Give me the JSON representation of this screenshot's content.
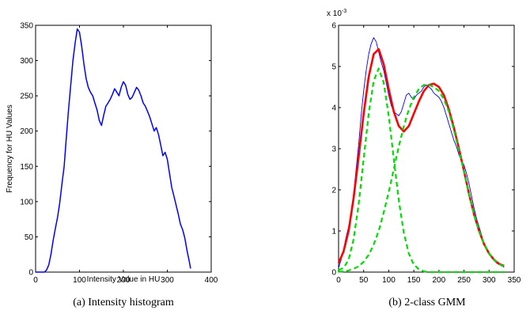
{
  "chart_data": [
    {
      "type": "line",
      "caption": "(a) Intensity histogram",
      "xlabel": "Intensity Value in HU",
      "ylabel": "Frequency for HU Values",
      "xlim": [
        0,
        400
      ],
      "ylim": [
        0,
        350
      ],
      "xticks": [
        "0",
        "100",
        "200",
        "300",
        "400"
      ],
      "yticks": [
        "0",
        "50",
        "100",
        "150",
        "200",
        "250",
        "300",
        "350"
      ],
      "grid": false,
      "series": [
        {
          "color": "#0000ff",
          "x": [
            0,
            20,
            25,
            30,
            35,
            40,
            45,
            50,
            55,
            60,
            65,
            70,
            75,
            80,
            85,
            90,
            95,
            100,
            105,
            110,
            115,
            120,
            125,
            130,
            135,
            140,
            145,
            150,
            155,
            160,
            165,
            170,
            175,
            180,
            185,
            190,
            195,
            200,
            205,
            210,
            215,
            220,
            225,
            230,
            235,
            240,
            245,
            250,
            255,
            260,
            265,
            270,
            275,
            280,
            285,
            290,
            295,
            300,
            305,
            310,
            315,
            320,
            325,
            330,
            335,
            340,
            345,
            350,
            353
          ],
          "y": [
            0,
            0,
            3,
            10,
            25,
            45,
            62,
            78,
            98,
            125,
            150,
            190,
            230,
            265,
            300,
            325,
            345,
            340,
            320,
            295,
            275,
            262,
            255,
            250,
            240,
            230,
            215,
            208,
            222,
            235,
            240,
            245,
            252,
            260,
            255,
            250,
            262,
            270,
            265,
            252,
            245,
            248,
            255,
            262,
            258,
            250,
            240,
            235,
            228,
            220,
            210,
            200,
            205,
            195,
            180,
            165,
            170,
            160,
            140,
            120,
            108,
            95,
            82,
            68,
            60,
            48,
            30,
            15,
            5
          ]
        }
      ]
    },
    {
      "type": "line",
      "caption": "(b) 2-class GMM",
      "xlabel": "",
      "ylabel": "",
      "xlim": [
        0,
        350
      ],
      "ylim": [
        0,
        6
      ],
      "yscale_label": "x 10-3",
      "yscale_base": "x 10",
      "yscale_exponent": "-3",
      "xticks": [
        "0",
        "50",
        "100",
        "150",
        "200",
        "250",
        "300",
        "350"
      ],
      "yticks": [
        "0",
        "1",
        "2",
        "3",
        "4",
        "5",
        "6"
      ],
      "grid": false,
      "series": [
        {
          "color": "#0000ff",
          "style": "solid-thin",
          "x": [
            0,
            5,
            10,
            15,
            20,
            25,
            30,
            35,
            40,
            45,
            50,
            55,
            60,
            65,
            70,
            75,
            80,
            85,
            90,
            95,
            100,
            105,
            110,
            115,
            120,
            125,
            130,
            135,
            140,
            145,
            150,
            155,
            160,
            165,
            170,
            175,
            180,
            185,
            190,
            195,
            200,
            205,
            210,
            215,
            220,
            225,
            230,
            235,
            240,
            245,
            250,
            255,
            260,
            265,
            270,
            275,
            280,
            285,
            290,
            295,
            300,
            305,
            310,
            315,
            320,
            325,
            330
          ],
          "y": [
            0.1,
            0.3,
            0.55,
            0.85,
            1.1,
            1.45,
            1.9,
            2.5,
            3.1,
            3.8,
            4.4,
            4.9,
            5.3,
            5.55,
            5.7,
            5.6,
            5.35,
            5.1,
            4.9,
            4.6,
            4.3,
            4.05,
            3.9,
            3.85,
            3.8,
            3.9,
            4.1,
            4.3,
            4.35,
            4.25,
            4.2,
            4.3,
            4.35,
            4.4,
            4.5,
            4.55,
            4.5,
            4.45,
            4.35,
            4.3,
            4.25,
            4.15,
            4.0,
            3.8,
            3.6,
            3.4,
            3.2,
            3.05,
            2.85,
            2.7,
            2.6,
            2.4,
            2.15,
            1.85,
            1.55,
            1.3,
            1.1,
            0.9,
            0.7,
            0.55,
            0.45,
            0.35,
            0.28,
            0.22,
            0.18,
            0.15,
            0.12
          ]
        },
        {
          "color": "#ff0000",
          "style": "solid-thick",
          "x": [
            0,
            10,
            20,
            30,
            40,
            50,
            60,
            70,
            80,
            90,
            100,
            110,
            120,
            130,
            140,
            150,
            160,
            170,
            180,
            190,
            200,
            210,
            220,
            230,
            240,
            250,
            260,
            270,
            280,
            290,
            300,
            310,
            320,
            330
          ],
          "y": [
            0.22,
            0.5,
            1.0,
            1.8,
            2.8,
            3.85,
            4.75,
            5.3,
            5.42,
            5.05,
            4.45,
            3.9,
            3.55,
            3.42,
            3.55,
            3.85,
            4.15,
            4.4,
            4.55,
            4.58,
            4.5,
            4.3,
            3.95,
            3.5,
            3.0,
            2.45,
            1.9,
            1.4,
            1.0,
            0.68,
            0.45,
            0.3,
            0.2,
            0.15
          ]
        },
        {
          "color": "#00dd00",
          "style": "dashed",
          "x": [
            0,
            10,
            20,
            30,
            40,
            50,
            60,
            70,
            80,
            90,
            100,
            110,
            120,
            130,
            140,
            150,
            160,
            170,
            180,
            190,
            200,
            210,
            220,
            230,
            240,
            250,
            260,
            270,
            280,
            290,
            300,
            310,
            320,
            330
          ],
          "y": [
            0.05,
            0.1,
            0.3,
            0.8,
            1.65,
            2.75,
            3.85,
            4.65,
            4.95,
            4.6,
            3.8,
            2.75,
            1.75,
            0.95,
            0.45,
            0.18,
            0.07,
            0.02,
            0.0,
            0.0,
            0.0,
            0.0,
            0.0,
            0.0,
            0.0,
            0.0,
            0.0,
            0.0,
            0.0,
            0.0,
            0.0,
            0.0,
            0.0,
            0.0
          ]
        },
        {
          "color": "#00dd00",
          "style": "dashed",
          "x": [
            0,
            10,
            20,
            30,
            40,
            50,
            60,
            70,
            80,
            90,
            100,
            110,
            120,
            130,
            140,
            150,
            160,
            170,
            180,
            190,
            200,
            210,
            220,
            230,
            240,
            250,
            260,
            270,
            280,
            290,
            300,
            310,
            320,
            330
          ],
          "y": [
            0.01,
            0.02,
            0.04,
            0.08,
            0.14,
            0.25,
            0.42,
            0.67,
            1.0,
            1.45,
            1.95,
            2.5,
            3.05,
            3.55,
            3.95,
            4.25,
            4.45,
            4.55,
            4.55,
            4.5,
            4.4,
            4.2,
            3.9,
            3.45,
            2.95,
            2.45,
            1.9,
            1.4,
            1.0,
            0.68,
            0.45,
            0.3,
            0.2,
            0.13
          ]
        }
      ]
    }
  ]
}
